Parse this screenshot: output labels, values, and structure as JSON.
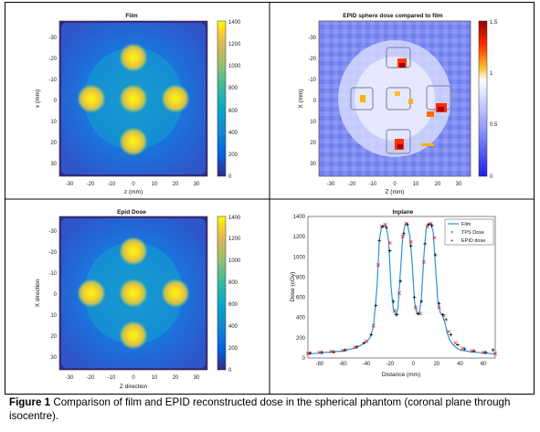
{
  "figure": {
    "caption_label": "Figure 1",
    "caption_text": "Comparison of film and EPID reconstructed dose in the spherical phantom (coronal plane through isocentre)."
  },
  "panels": {
    "film": {
      "title": "Film",
      "xlabel": "z (mm)",
      "ylabel": "x (mm)",
      "xticks": [
        "-30",
        "-20",
        "-10",
        "0",
        "10",
        "20",
        "30"
      ],
      "yticks": [
        "-30",
        "-20",
        "-10",
        "0",
        "10",
        "20",
        "30"
      ],
      "colorbar_ticks": [
        "0",
        "200",
        "400",
        "600",
        "800",
        "1000",
        "1200",
        "1400"
      ]
    },
    "ratio": {
      "title": "EPID sphere dose compared to film",
      "xlabel": "Z (mm)",
      "ylabel": "X (mm)",
      "xticks": [
        "-30",
        "-20",
        "-10",
        "0",
        "10",
        "20",
        "30"
      ],
      "yticks": [
        "-30",
        "-20",
        "-10",
        "0",
        "10",
        "20",
        "30"
      ],
      "colorbar_ticks": [
        "0",
        "0.5",
        "1",
        "1.5"
      ]
    },
    "epid": {
      "title": "Epid Dose",
      "xlabel": "Z direction",
      "ylabel": "X direction",
      "xticks": [
        "-30",
        "-20",
        "-10",
        "0",
        "10",
        "20",
        "30"
      ],
      "yticks": [
        "-30",
        "-20",
        "-10",
        "0",
        "10",
        "20",
        "30"
      ],
      "colorbar_ticks": [
        "0",
        "200",
        "400",
        "600",
        "800",
        "1000",
        "1200",
        "1400"
      ]
    }
  },
  "colors": {
    "parula": [
      "#352a87",
      "#0363e1",
      "#1485d4",
      "#06a7c6",
      "#38b99e",
      "#92bf73",
      "#d9ba56",
      "#fcce2e",
      "#f9fb0e"
    ],
    "ratio_map": [
      "#3232ff",
      "#aab4ff",
      "#ffffff",
      "#ffaa00",
      "#ff0000",
      "#960000"
    ],
    "film_line": "#2b93d8",
    "tps_marker": "#e0201b",
    "epid_marker": "#000000"
  },
  "chart_data": {
    "type": "line",
    "title": "Inplane",
    "xlabel": "Distance (mm)",
    "ylabel": "Dose (cGy)",
    "xlim": [
      -90,
      70
    ],
    "ylim": [
      0,
      1400
    ],
    "xticks": [
      "-80",
      "-60",
      "-40",
      "-20",
      "0",
      "20",
      "40",
      "60"
    ],
    "yticks": [
      "0",
      "200",
      "400",
      "600",
      "800",
      "1000",
      "1200",
      "1400"
    ],
    "legend_position": "top-right",
    "series": [
      {
        "name": "Film",
        "style": "line",
        "x": [
          -90,
          -80,
          -70,
          -60,
          -50,
          -45,
          -40,
          -37,
          -34,
          -31,
          -29,
          -27,
          -25,
          -23,
          -21,
          -19,
          -17,
          -15,
          -13,
          -11,
          -9,
          -7,
          -5,
          -3,
          -1,
          1,
          3,
          5,
          7,
          9,
          11,
          13,
          15,
          17,
          19,
          21,
          23,
          25,
          27,
          29,
          31,
          34,
          37,
          40,
          45,
          50,
          55,
          60,
          65,
          70
        ],
        "y": [
          40,
          50,
          60,
          70,
          100,
          125,
          160,
          200,
          310,
          700,
          1170,
          1300,
          1310,
          1300,
          1150,
          700,
          480,
          420,
          500,
          850,
          1200,
          1320,
          1320,
          1210,
          950,
          560,
          440,
          430,
          600,
          1000,
          1280,
          1330,
          1320,
          1250,
          900,
          560,
          450,
          420,
          350,
          250,
          180,
          130,
          100,
          80,
          70,
          60,
          55,
          50,
          45,
          40
        ]
      },
      {
        "name": "TPS Dose",
        "style": "x-marker",
        "x": [
          -90,
          -80,
          -70,
          -60,
          -50,
          -40,
          -34,
          -30,
          -27,
          -24,
          -20,
          -16,
          -12,
          -9,
          -6,
          -2,
          2,
          6,
          9,
          12,
          15,
          18,
          22,
          26,
          30,
          36,
          42,
          50,
          60,
          70
        ],
        "y": [
          45,
          55,
          65,
          75,
          105,
          165,
          320,
          920,
          1300,
          1320,
          1140,
          470,
          640,
          1200,
          1330,
          1150,
          500,
          440,
          950,
          1300,
          1330,
          1190,
          500,
          420,
          260,
          150,
          95,
          70,
          55,
          45
        ]
      },
      {
        "name": "EPID dose",
        "style": "plus-marker",
        "x": [
          -88,
          -78,
          -68,
          -58,
          -48,
          -42,
          -36,
          -32,
          -29,
          -26,
          -23,
          -20,
          -17,
          -14,
          -11,
          -8,
          -5,
          -2,
          1,
          4,
          7,
          10,
          13,
          16,
          19,
          22,
          25,
          28,
          32,
          38,
          44,
          52,
          62,
          68
        ],
        "y": [
          50,
          55,
          60,
          80,
          110,
          150,
          230,
          520,
          1160,
          1300,
          1290,
          1060,
          560,
          430,
          760,
          1230,
          1320,
          1110,
          600,
          440,
          560,
          1130,
          1320,
          1310,
          1020,
          540,
          430,
          380,
          230,
          130,
          90,
          70,
          55,
          80
        ]
      }
    ]
  }
}
